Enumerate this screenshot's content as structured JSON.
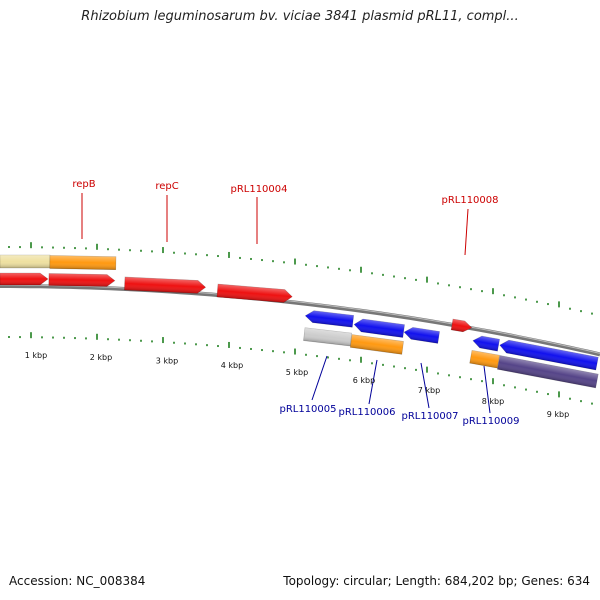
{
  "title": "Rhizobium leguminosarum bv. viciae 3841 plasmid pRL11, compl...",
  "footer": {
    "accession": "Accession: NC_008384",
    "summary": "Topology: circular; Length: 684,202 bp; Genes: 634"
  },
  "colors": {
    "upper_label": "#cc0000",
    "lower_label": "#000099",
    "tick": "#117711",
    "backbone": "#777777",
    "red_feature": "#ee1111",
    "blue_feature": "#1111ee",
    "orange_feature": "#ff9911",
    "pale_feature": "#eee0a0",
    "gray_feature": "#cccccc",
    "purple_feature": "#554488"
  },
  "kbp_ticks": [
    "1 kbp",
    "2 kbp",
    "3 kbp",
    "4 kbp",
    "5 kbp",
    "6 kbp",
    "7 kbp",
    "8 kbp",
    "9 kbp"
  ],
  "upper_labels": [
    "repB",
    "repC",
    "pRL110004",
    "pRL110008"
  ],
  "lower_labels": [
    "pRL110005",
    "pRL110006",
    "pRL110007",
    "pRL110009"
  ]
}
